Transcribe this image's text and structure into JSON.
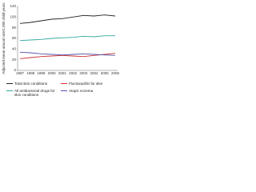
{
  "chart_data": {
    "type": "line",
    "y_label": "Adjusted mean annual rate/1,000 child-years",
    "x": [
      "1997",
      "1998",
      "1999",
      "2000",
      "2001",
      "2002",
      "2003",
      "2004",
      "2005",
      "2006"
    ],
    "ylim": [
      0,
      120
    ],
    "yticks": [
      0,
      20,
      40,
      60,
      80,
      100,
      120
    ],
    "series": [
      {
        "name": "Total skin conditions",
        "color": "#222222",
        "values": [
          88,
          90,
          93,
          96,
          97,
          100,
          103,
          102,
          104,
          102
        ]
      },
      {
        "name": "All antibacterial drugs for skin conditions",
        "color": "#33a8a0",
        "values": [
          56,
          57,
          58,
          60,
          61,
          62,
          64,
          63,
          65,
          65
        ]
      },
      {
        "name": "Flucloxacillin for skin",
        "color": "#cc3333",
        "values": [
          22,
          24,
          26,
          27,
          28,
          27,
          26,
          28,
          30,
          32
        ]
      },
      {
        "name": "Atopic eczema",
        "color": "#5555aa",
        "values": [
          34,
          33,
          31,
          30,
          29,
          30,
          31,
          30,
          29,
          28
        ]
      }
    ]
  }
}
